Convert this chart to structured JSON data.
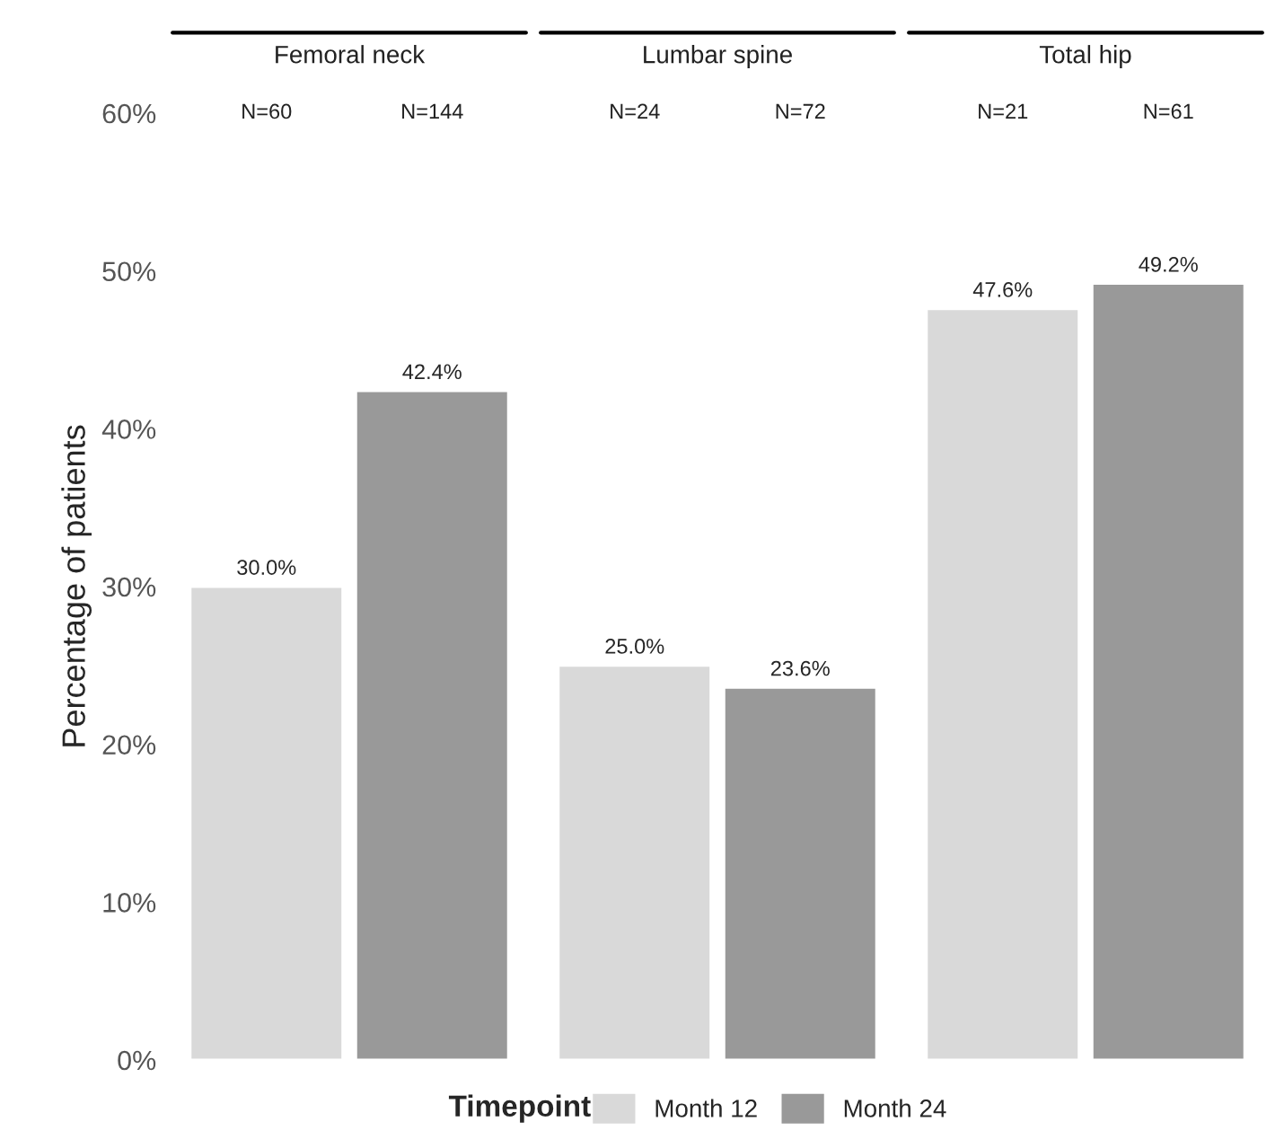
{
  "chart_data": {
    "type": "bar",
    "ylabel": "Percentage of patients",
    "categories": [
      "Femoral neck",
      "Lumbar spine",
      "Total hip"
    ],
    "ylim": [
      0,
      60
    ],
    "yticks": [
      {
        "value": 0,
        "label": "0%"
      },
      {
        "value": 10,
        "label": "10%"
      },
      {
        "value": 20,
        "label": "20%"
      },
      {
        "value": 30,
        "label": "30%"
      },
      {
        "value": 40,
        "label": "40%"
      },
      {
        "value": 50,
        "label": "50%"
      },
      {
        "value": 60,
        "label": "60%"
      }
    ],
    "grid": false,
    "legend": "bottom",
    "legend_title": "Timepoint",
    "annotations": [
      "N=60",
      "N=144",
      "N=24",
      "N=72",
      "N=21",
      "N=61"
    ],
    "series": [
      {
        "name": "Month 12",
        "color": "#d9d9d9",
        "values": [
          30.0,
          25.0,
          47.6
        ],
        "value_labels": [
          "30.0%",
          "25.0%",
          "47.6%"
        ]
      },
      {
        "name": "Month 24",
        "color": "#999999",
        "values": [
          42.4,
          23.6,
          49.2
        ],
        "value_labels": [
          "42.4%",
          "23.6%",
          "49.2%"
        ]
      }
    ]
  }
}
